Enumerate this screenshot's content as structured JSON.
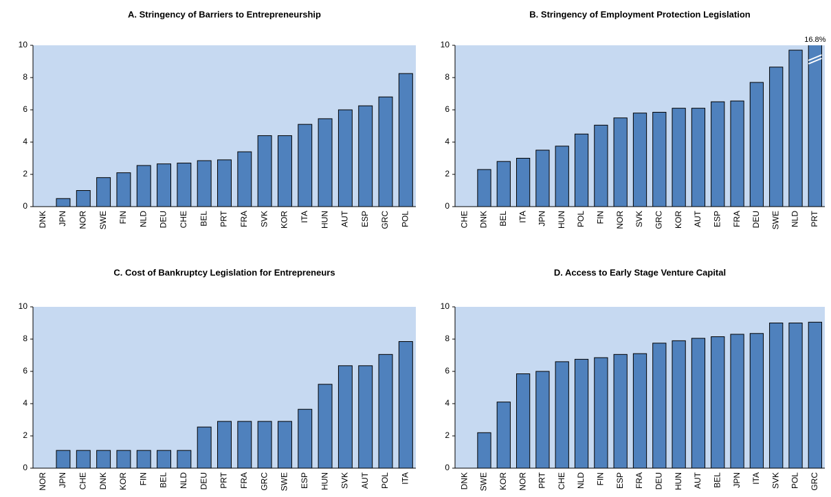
{
  "chart_data": [
    {
      "type": "bar",
      "title": "A. Stringency of Barriers to Entrepreneurship",
      "categories": [
        "DNK",
        "JPN",
        "NOR",
        "SWE",
        "FIN",
        "NLD",
        "DEU",
        "CHE",
        "BEL",
        "PRT",
        "FRA",
        "SVK",
        "KOR",
        "ITA",
        "HUN",
        "AUT",
        "ESP",
        "GRC",
        "POL"
      ],
      "values": [
        0,
        0.5,
        1.0,
        1.8,
        2.1,
        2.55,
        2.65,
        2.7,
        2.85,
        2.9,
        3.4,
        4.4,
        4.4,
        5.1,
        5.45,
        6.0,
        6.25,
        6.8,
        8.25
      ],
      "color": "#4f81bd",
      "ylim": [
        0,
        10
      ],
      "yticks": [
        0,
        2,
        4,
        6,
        8,
        10
      ]
    },
    {
      "type": "bar",
      "title": "B. Stringency of Employment Protection Legislation",
      "categories": [
        "CHE",
        "DNK",
        "BEL",
        "ITA",
        "JPN",
        "HUN",
        "POL",
        "FIN",
        "NOR",
        "SVK",
        "GRC",
        "KOR",
        "AUT",
        "ESP",
        "FRA",
        "DEU",
        "SWE",
        "NLD",
        "PRT"
      ],
      "values": [
        0,
        2.3,
        2.8,
        3.0,
        3.5,
        3.75,
        4.5,
        5.05,
        5.5,
        5.8,
        5.85,
        6.1,
        6.1,
        6.5,
        6.55,
        7.7,
        8.65,
        9.7,
        16.8
      ],
      "value_labels": [
        null,
        null,
        null,
        null,
        null,
        null,
        null,
        null,
        null,
        null,
        null,
        null,
        null,
        null,
        null,
        null,
        null,
        null,
        "16.8%"
      ],
      "color": "#4f81bd",
      "ylim": [
        0,
        10
      ],
      "yticks": [
        0,
        2,
        4,
        6,
        8,
        10
      ]
    },
    {
      "type": "bar",
      "title": "C. Cost of Bankruptcy Legislation for Entrepreneurs",
      "categories": [
        "NOR",
        "JPN",
        "CHE",
        "DNK",
        "KOR",
        "FIN",
        "BEL",
        "NLD",
        "DEU",
        "PRT",
        "FRA",
        "GRC",
        "SWE",
        "ESP",
        "HUN",
        "SVK",
        "AUT",
        "POL",
        "ITA"
      ],
      "values": [
        0,
        1.1,
        1.1,
        1.1,
        1.1,
        1.1,
        1.1,
        1.1,
        2.55,
        2.9,
        2.9,
        2.9,
        2.9,
        3.65,
        5.2,
        6.35,
        6.35,
        7.05,
        7.85
      ],
      "color": "#4f81bd",
      "ylim": [
        0,
        10
      ],
      "yticks": [
        0,
        2,
        4,
        6,
        8,
        10
      ]
    },
    {
      "type": "bar",
      "title": "D. Access to Early Stage Venture Capital",
      "categories": [
        "DNK",
        "SWE",
        "KOR",
        "NOR",
        "PRT",
        "CHE",
        "NLD",
        "FIN",
        "ESP",
        "FRA",
        "DEU",
        "HUN",
        "AUT",
        "BEL",
        "JPN",
        "ITA",
        "SVK",
        "POL",
        "GRC"
      ],
      "values": [
        0,
        2.2,
        4.1,
        5.85,
        6.0,
        6.6,
        6.75,
        6.85,
        7.05,
        7.1,
        7.75,
        7.9,
        8.05,
        8.15,
        8.3,
        8.35,
        9.0,
        9.0,
        9.05
      ],
      "color": "#4f81bd",
      "ylim": [
        0,
        10
      ],
      "yticks": [
        0,
        2,
        4,
        6,
        8,
        10
      ]
    }
  ]
}
